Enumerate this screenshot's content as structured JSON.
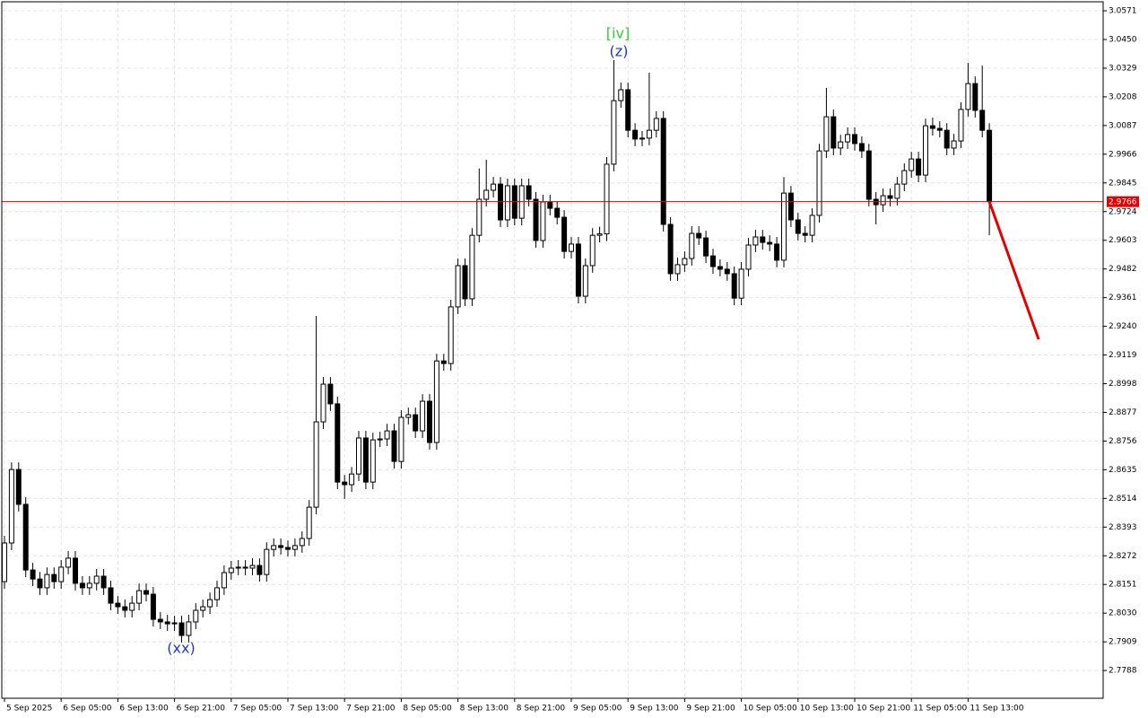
{
  "chart_data": {
    "type": "candlestick",
    "categories": [
      "5 Sep 2025",
      null,
      null,
      null,
      null,
      null,
      null,
      null,
      "6 Sep 05:00",
      null,
      null,
      null,
      null,
      null,
      null,
      null,
      "6 Sep 13:00",
      null,
      null,
      null,
      null,
      null,
      null,
      null,
      "6 Sep 21:00",
      null,
      null,
      null,
      null,
      null,
      null,
      null,
      "7 Sep 05:00",
      null,
      null,
      null,
      null,
      null,
      null,
      null,
      "7 Sep 13:00",
      null,
      null,
      null,
      null,
      null,
      null,
      null,
      "7 Sep 21:00",
      null,
      null,
      null,
      null,
      null,
      null,
      null,
      "8 Sep 05:00",
      null,
      null,
      null,
      null,
      null,
      null,
      null,
      "8 Sep 13:00",
      null,
      null,
      null,
      null,
      null,
      null,
      null,
      "8 Sep 21:00",
      null,
      null,
      null,
      null,
      null,
      null,
      null,
      "9 Sep 05:00",
      null,
      null,
      null,
      null,
      null,
      null,
      null,
      "9 Sep 13:00",
      null,
      null,
      null,
      null,
      null,
      null,
      null,
      "9 Sep 21:00",
      null,
      null,
      null,
      null,
      null,
      null,
      null,
      "10 Sep 05:00",
      null,
      null,
      null,
      null,
      null,
      null,
      null,
      "10 Sep 13:00",
      null,
      null,
      null,
      null,
      null,
      null,
      null,
      "10 Sep 21:00",
      null,
      null,
      null,
      null,
      null,
      null,
      null,
      "11 Sep 05:00",
      null,
      null,
      null,
      null,
      null,
      null,
      null,
      "11 Sep 13:00",
      null,
      null,
      null
    ],
    "candles": [
      [
        2.8163,
        2.8356,
        2.8133,
        2.8326
      ],
      [
        2.8326,
        2.8666,
        2.8296,
        2.8636
      ],
      [
        2.8636,
        2.8666,
        2.8459,
        2.8489
      ],
      [
        2.8489,
        2.8519,
        2.8182,
        2.8212
      ],
      [
        2.8212,
        2.8242,
        2.8144,
        2.8174
      ],
      [
        2.8174,
        2.8204,
        2.8107,
        2.8137
      ],
      [
        2.8137,
        2.8223,
        2.8107,
        2.8193
      ],
      [
        2.8193,
        2.8223,
        2.8133,
        2.8163
      ],
      [
        2.8163,
        2.8254,
        2.8133,
        2.8224
      ],
      [
        2.8224,
        2.8292,
        2.8194,
        2.8262
      ],
      [
        2.8262,
        2.8292,
        2.8126,
        2.8156
      ],
      [
        2.8156,
        2.8186,
        2.8107,
        2.8137
      ],
      [
        2.8137,
        2.8186,
        2.8107,
        2.8156
      ],
      [
        2.8156,
        2.8216,
        2.8126,
        2.8186
      ],
      [
        2.8186,
        2.8216,
        2.8107,
        2.8137
      ],
      [
        2.8137,
        2.8167,
        2.8042,
        2.8072
      ],
      [
        2.8072,
        2.8102,
        2.8027,
        2.8057
      ],
      [
        2.8057,
        2.8087,
        2.8012,
        2.8042
      ],
      [
        2.8042,
        2.8102,
        2.8012,
        2.8072
      ],
      [
        2.8072,
        2.8155,
        2.8042,
        2.8125
      ],
      [
        2.8125,
        2.8155,
        2.808,
        2.811
      ],
      [
        2.811,
        2.814,
        2.7974,
        2.8004
      ],
      [
        2.8004,
        2.8034,
        2.7963,
        2.7993
      ],
      [
        2.7993,
        2.8023,
        2.7955,
        2.7985
      ],
      [
        2.7985,
        2.8019,
        2.7955,
        2.7989
      ],
      [
        2.7989,
        2.8019,
        2.7906,
        2.7936
      ],
      [
        2.7936,
        2.8023,
        2.7906,
        2.7993
      ],
      [
        2.7993,
        2.8072,
        2.7963,
        2.8042
      ],
      [
        2.8042,
        2.8087,
        2.8012,
        2.8057
      ],
      [
        2.8057,
        2.8117,
        2.8027,
        2.8087
      ],
      [
        2.8087,
        2.8167,
        2.8057,
        2.8137
      ],
      [
        2.8137,
        2.8231,
        2.8107,
        2.8201
      ],
      [
        2.8201,
        2.825,
        2.8171,
        2.822
      ],
      [
        2.822,
        2.8254,
        2.819,
        2.8224
      ],
      [
        2.8224,
        2.8254,
        2.819,
        2.822
      ],
      [
        2.822,
        2.8261,
        2.819,
        2.8231
      ],
      [
        2.8231,
        2.8261,
        2.8163,
        2.8193
      ],
      [
        2.8193,
        2.8329,
        2.8163,
        2.8299
      ],
      [
        2.8299,
        2.8345,
        2.8269,
        2.8315
      ],
      [
        2.8315,
        2.8345,
        2.8277,
        2.8307
      ],
      [
        2.8307,
        2.8337,
        2.8269,
        2.8299
      ],
      [
        2.8299,
        2.8345,
        2.8269,
        2.8315
      ],
      [
        2.8315,
        2.8375,
        2.8285,
        2.8345
      ],
      [
        2.8345,
        2.8507,
        2.8315,
        2.8477
      ],
      [
        2.8477,
        2.9284,
        2.8447,
        2.8837
      ],
      [
        2.8837,
        2.9026,
        2.8807,
        2.8996
      ],
      [
        2.8996,
        2.9026,
        2.8883,
        2.8913
      ],
      [
        2.8913,
        2.8943,
        2.8553,
        2.8583
      ],
      [
        2.8583,
        2.8613,
        2.8512,
        2.8572
      ],
      [
        2.8572,
        2.8647,
        2.8542,
        2.8617
      ],
      [
        2.8617,
        2.8799,
        2.8587,
        2.8769
      ],
      [
        2.8769,
        2.8799,
        2.8553,
        2.8583
      ],
      [
        2.8583,
        2.8791,
        2.8553,
        2.8761
      ],
      [
        2.8761,
        2.8795,
        2.8731,
        2.8765
      ],
      [
        2.8765,
        2.8829,
        2.8735,
        2.8799
      ],
      [
        2.8799,
        2.8829,
        2.864,
        2.867
      ],
      [
        2.867,
        2.8886,
        2.864,
        2.8856
      ],
      [
        2.8856,
        2.8897,
        2.8826,
        2.8867
      ],
      [
        2.8867,
        2.8897,
        2.8769,
        2.8799
      ],
      [
        2.8799,
        2.8954,
        2.8769,
        2.8924
      ],
      [
        2.8924,
        2.8954,
        2.872,
        2.875
      ],
      [
        2.875,
        2.9124,
        2.872,
        2.9094
      ],
      [
        2.9094,
        2.9124,
        2.9053,
        2.9083
      ],
      [
        2.9083,
        2.9352,
        2.9053,
        2.9322
      ],
      [
        2.9322,
        2.9526,
        2.9292,
        2.9496
      ],
      [
        2.9496,
        2.9526,
        2.9326,
        2.9356
      ],
      [
        2.9356,
        2.9654,
        2.9326,
        2.9624
      ],
      [
        2.9624,
        2.9906,
        2.9594,
        2.9776
      ],
      [
        2.9776,
        2.9943,
        2.9746,
        2.9814
      ],
      [
        2.9814,
        2.987,
        2.9784,
        2.984
      ],
      [
        2.984,
        2.987,
        2.9659,
        2.9689
      ],
      [
        2.9689,
        2.9863,
        2.9659,
        2.9833
      ],
      [
        2.9833,
        2.9863,
        2.9666,
        2.9696
      ],
      [
        2.9696,
        2.9863,
        2.9666,
        2.9833
      ],
      [
        2.9833,
        2.9863,
        2.9746,
        2.9776
      ],
      [
        2.9776,
        2.9806,
        2.9572,
        2.9602
      ],
      [
        2.9602,
        2.9795,
        2.9572,
        2.9765
      ],
      [
        2.9765,
        2.9795,
        2.9708,
        2.9738
      ],
      [
        2.9738,
        2.9768,
        2.967,
        2.97
      ],
      [
        2.97,
        2.973,
        2.9526,
        2.9556
      ],
      [
        2.9556,
        2.9617,
        2.9526,
        2.9587
      ],
      [
        2.9587,
        2.9617,
        2.9337,
        2.9367
      ],
      [
        2.9367,
        2.9526,
        2.9337,
        2.9496
      ],
      [
        2.9496,
        2.9654,
        2.9466,
        2.9624
      ],
      [
        2.9624,
        2.966,
        2.9594,
        2.963
      ],
      [
        2.963,
        2.9954,
        2.96,
        2.9924
      ],
      [
        2.9924,
        3.0363,
        2.9894,
        3.0192
      ],
      [
        3.0192,
        3.0268,
        3.0162,
        3.0238
      ],
      [
        3.0238,
        3.0268,
        3.0037,
        3.0067
      ],
      [
        3.0067,
        3.0097,
        3.0,
        3.003
      ],
      [
        3.003,
        3.0064,
        3.0,
        3.0034
      ],
      [
        3.0034,
        3.031,
        3.0004,
        3.0067
      ],
      [
        3.0067,
        3.0147,
        3.0037,
        3.0117
      ],
      [
        3.0117,
        3.0147,
        2.964,
        2.967
      ],
      [
        2.967,
        2.97,
        2.9432,
        2.9462
      ],
      [
        2.9462,
        2.953,
        2.9432,
        2.95
      ],
      [
        2.95,
        2.9556,
        2.947,
        2.9526
      ],
      [
        2.9526,
        2.9662,
        2.9496,
        2.9632
      ],
      [
        2.9632,
        2.9662,
        2.9583,
        2.9613
      ],
      [
        2.9613,
        2.9643,
        2.9507,
        2.9537
      ],
      [
        2.9537,
        2.9567,
        2.9462,
        2.9492
      ],
      [
        2.9492,
        2.9522,
        2.9451,
        2.9481
      ],
      [
        2.9481,
        2.9511,
        2.9432,
        2.9462
      ],
      [
        2.9462,
        2.9492,
        2.9329,
        2.9359
      ],
      [
        2.9359,
        2.9511,
        2.9329,
        2.9481
      ],
      [
        2.9481,
        2.9613,
        2.9451,
        2.9583
      ],
      [
        2.9583,
        2.9647,
        2.9553,
        2.9617
      ],
      [
        2.9617,
        2.9647,
        2.9564,
        2.9594
      ],
      [
        2.9594,
        2.9624,
        2.9557,
        2.9587
      ],
      [
        2.9587,
        2.9617,
        2.9489,
        2.9519
      ],
      [
        2.9519,
        2.987,
        2.9489,
        2.9802
      ],
      [
        2.9802,
        2.9832,
        2.9659,
        2.9689
      ],
      [
        2.9689,
        2.9719,
        2.9602,
        2.9632
      ],
      [
        2.9632,
        2.9662,
        2.9594,
        2.9624
      ],
      [
        2.9624,
        2.9738,
        2.9594,
        2.9708
      ],
      [
        2.9708,
        3.001,
        2.9678,
        2.998
      ],
      [
        2.998,
        3.0246,
        2.995,
        3.0124
      ],
      [
        3.0124,
        3.0154,
        2.9962,
        2.9992
      ],
      [
        2.9992,
        3.0048,
        2.9962,
        3.0018
      ],
      [
        3.0018,
        3.0079,
        2.9988,
        3.0049
      ],
      [
        3.0049,
        3.0079,
        2.9981,
        3.0011
      ],
      [
        3.0011,
        3.0041,
        2.995,
        2.998
      ],
      [
        2.998,
        3.001,
        2.9746,
        2.9776
      ],
      [
        2.9776,
        2.9806,
        2.967,
        2.9753
      ],
      [
        2.9753,
        2.9821,
        2.9723,
        2.9791
      ],
      [
        2.9791,
        2.9821,
        2.9746,
        2.978
      ],
      [
        2.978,
        2.987,
        2.975,
        2.984
      ],
      [
        2.984,
        2.9927,
        2.981,
        2.9897
      ],
      [
        2.9897,
        2.9976,
        2.9867,
        2.9946
      ],
      [
        2.9946,
        2.9976,
        2.9848,
        2.9878
      ],
      [
        2.9878,
        3.0116,
        2.9848,
        3.0086
      ],
      [
        3.0086,
        3.012,
        3.0045,
        3.0075
      ],
      [
        3.0075,
        3.0105,
        3.0037,
        3.0067
      ],
      [
        3.0067,
        3.0097,
        2.9962,
        2.9992
      ],
      [
        2.9992,
        3.0052,
        2.9962,
        3.0022
      ],
      [
        3.0022,
        3.0185,
        2.9992,
        3.0155
      ],
      [
        3.0155,
        3.0351,
        3.0125,
        3.0264
      ],
      [
        3.0264,
        3.0294,
        3.0121,
        3.0151
      ],
      [
        3.0151,
        3.034,
        3.0037,
        3.0067
      ],
      [
        3.0067,
        3.0097,
        2.9624,
        2.9766
      ]
    ],
    "up_color": "#ffffff",
    "down_color": "#000000",
    "outline_color": "#000000",
    "ylim": [
      2.7671,
      3.0609
    ],
    "yticks": [
      3.0571,
      {
        "value": 3.045,
        "label": "3.0450"
      },
      3.0329,
      3.0208,
      3.0087,
      2.9966,
      2.9845,
      2.9724,
      2.9603,
      2.9482,
      2.9361,
      {
        "value": 2.924,
        "label": "2.9240"
      },
      2.9119,
      2.8998,
      2.8877,
      2.8756,
      2.8635,
      2.8514,
      2.8393,
      2.8272,
      2.8151,
      {
        "value": 2.803,
        "label": "2.8030"
      },
      2.7909,
      2.7788
    ],
    "grid": true,
    "current_price": 2.9766,
    "current_price_color": "#e00000",
    "forecast": {
      "color": "#e00000",
      "values": [
        2.9766,
        2.9185
      ]
    },
    "annotations": [
      {
        "text": "[iv]",
        "color": "#33cc33"
      },
      {
        "text": "(z)",
        "color": "#2233cc"
      },
      {
        "text": "(xx)",
        "color": "#2233cc"
      }
    ]
  }
}
